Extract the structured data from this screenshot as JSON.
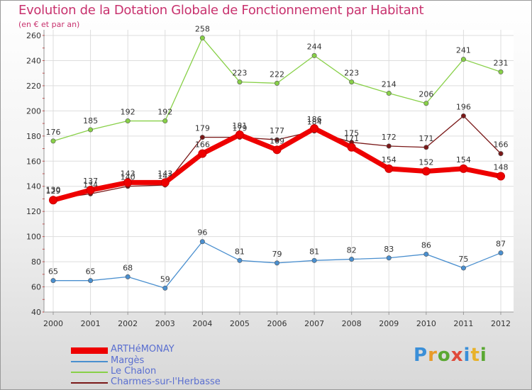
{
  "chart_data": {
    "type": "line",
    "title": "Evolution de la Dotation Globale de Fonctionnement par Habitant",
    "subtitle": "(en € et par an)",
    "xlabel": "",
    "ylabel": "",
    "categories": [
      "2000",
      "2001",
      "2002",
      "2003",
      "2004",
      "2005",
      "2006",
      "2007",
      "2008",
      "2009",
      "2010",
      "2011",
      "2012"
    ],
    "yticks": [
      40,
      60,
      80,
      100,
      120,
      140,
      160,
      180,
      200,
      220,
      240,
      260
    ],
    "ylim": [
      40,
      260
    ],
    "grid": true,
    "legend_position": "bottom-left",
    "series": [
      {
        "name": "ARTHéMONAY",
        "color": "#ee0000",
        "values": [
          129,
          137,
          143,
          143,
          166,
          181,
          169,
          186,
          171,
          154,
          152,
          154,
          148
        ]
      },
      {
        "name": "Margès",
        "color": "#4a8fcf",
        "values": [
          65,
          65,
          68,
          59,
          96,
          81,
          79,
          81,
          82,
          83,
          86,
          75,
          87
        ]
      },
      {
        "name": "Le Chalon",
        "color": "#88d048",
        "values": [
          176,
          185,
          192,
          192,
          258,
          223,
          222,
          244,
          223,
          214,
          206,
          241,
          231
        ]
      },
      {
        "name": "Charmes-sur-l'Herbasse",
        "color": "#7a1818",
        "values": [
          130,
          134,
          140,
          141,
          179,
          179,
          177,
          184,
          175,
          172,
          171,
          196,
          166
        ]
      }
    ]
  },
  "logo": {
    "text": "Proxiti"
  }
}
